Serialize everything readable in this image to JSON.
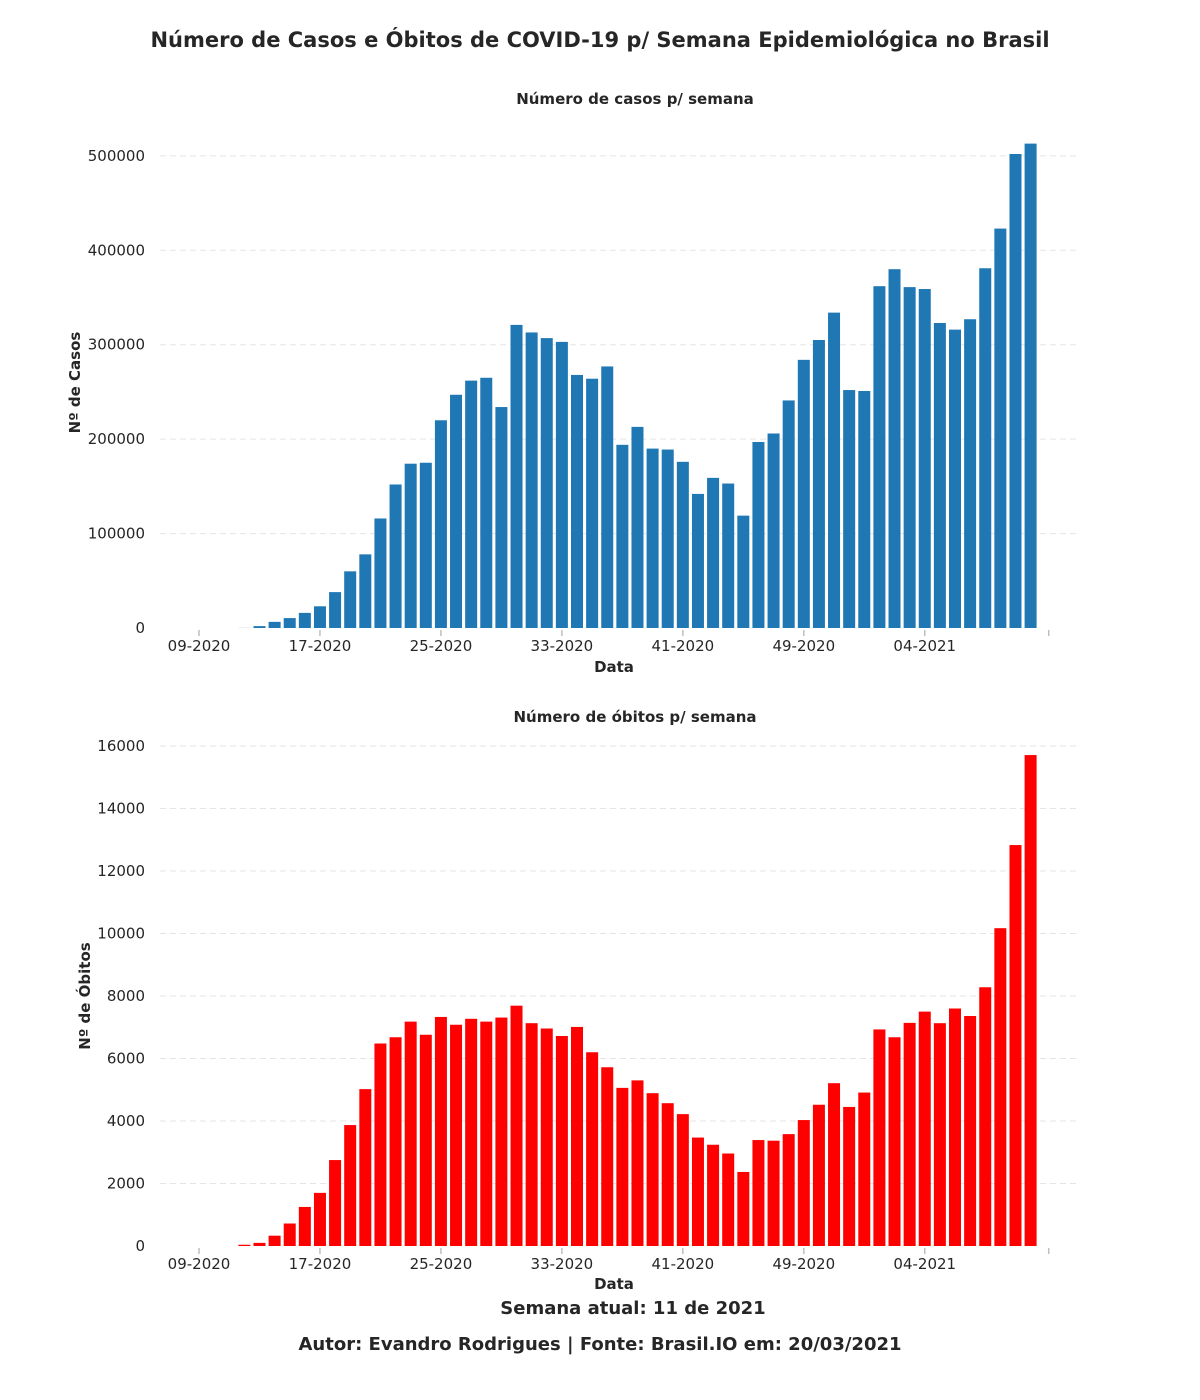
{
  "title": "Número de Casos e Óbitos de COVID-19 p/ Semana Epidemiológica no Brasil",
  "footer": {
    "week_label": "Semana atual: 11 de 2021",
    "author_label": "Autor: Evandro Rodrigues | Fonte: Brasil.IO em: 20/03/2021"
  },
  "chart_data": [
    {
      "type": "bar",
      "title": "Número de casos p/ semana",
      "xlabel": "Data",
      "ylabel": "Nº de Casos",
      "color": "#1f77b4",
      "grid": true,
      "grid_style": "dashed horizontal",
      "ylim": [
        0,
        520000
      ],
      "yticks": [
        0,
        100000,
        200000,
        300000,
        400000,
        500000
      ],
      "xticks": [
        "09-2020",
        "17-2020",
        "25-2020",
        "33-2020",
        "41-2020",
        "49-2020",
        "04-2021"
      ],
      "categories": [
        "09-2020",
        "10-2020",
        "11-2020",
        "12-2020",
        "13-2020",
        "14-2020",
        "15-2020",
        "16-2020",
        "17-2020",
        "18-2020",
        "19-2020",
        "20-2020",
        "21-2020",
        "22-2020",
        "23-2020",
        "24-2020",
        "25-2020",
        "26-2020",
        "27-2020",
        "28-2020",
        "29-2020",
        "30-2020",
        "31-2020",
        "32-2020",
        "33-2020",
        "34-2020",
        "35-2020",
        "36-2020",
        "37-2020",
        "38-2020",
        "39-2020",
        "40-2020",
        "41-2020",
        "42-2020",
        "43-2020",
        "44-2020",
        "45-2020",
        "46-2020",
        "47-2020",
        "48-2020",
        "49-2020",
        "50-2020",
        "51-2020",
        "52-2020",
        "53-2020",
        "01-2021",
        "02-2021",
        "03-2021",
        "04-2021",
        "05-2021",
        "06-2021",
        "07-2021",
        "08-2021",
        "09-2021",
        "10-2021",
        "11-2021"
      ],
      "values": [
        0,
        0,
        0,
        100,
        2000,
        6500,
        10500,
        16000,
        23000,
        38000,
        60000,
        78000,
        116000,
        152000,
        174000,
        175000,
        220000,
        247000,
        262000,
        265000,
        234000,
        321000,
        313000,
        307000,
        303000,
        268000,
        264000,
        277000,
        194000,
        213000,
        190000,
        189000,
        176000,
        142000,
        159000,
        153000,
        119000,
        197000,
        206000,
        241000,
        284000,
        305000,
        334000,
        252000,
        251000,
        362000,
        380000,
        361000,
        359000,
        323000,
        316000,
        327000,
        381000,
        423000,
        502000,
        513000
      ]
    },
    {
      "type": "bar",
      "title": "Número de óbitos p/ semana",
      "xlabel": "Data",
      "ylabel": "Nº de Óbitos",
      "color": "#ff0000",
      "grid": true,
      "grid_style": "dashed horizontal",
      "ylim": [
        0,
        16000
      ],
      "yticks": [
        0,
        2000,
        4000,
        6000,
        8000,
        10000,
        12000,
        14000,
        16000
      ],
      "xticks": [
        "09-2020",
        "17-2020",
        "25-2020",
        "33-2020",
        "41-2020",
        "49-2020",
        "04-2021"
      ],
      "categories": [
        "09-2020",
        "10-2020",
        "11-2020",
        "12-2020",
        "13-2020",
        "14-2020",
        "15-2020",
        "16-2020",
        "17-2020",
        "18-2020",
        "19-2020",
        "20-2020",
        "21-2020",
        "22-2020",
        "23-2020",
        "24-2020",
        "25-2020",
        "26-2020",
        "27-2020",
        "28-2020",
        "29-2020",
        "30-2020",
        "31-2020",
        "32-2020",
        "33-2020",
        "34-2020",
        "35-2020",
        "36-2020",
        "37-2020",
        "38-2020",
        "39-2020",
        "40-2020",
        "41-2020",
        "42-2020",
        "43-2020",
        "44-2020",
        "45-2020",
        "46-2020",
        "47-2020",
        "48-2020",
        "49-2020",
        "50-2020",
        "51-2020",
        "52-2020",
        "53-2020",
        "01-2021",
        "02-2021",
        "03-2021",
        "04-2021",
        "05-2021",
        "06-2021",
        "07-2021",
        "08-2021",
        "09-2021",
        "10-2021",
        "11-2021"
      ],
      "values": [
        0,
        0,
        0,
        40,
        100,
        330,
        720,
        1250,
        1700,
        2750,
        3870,
        5020,
        6480,
        6680,
        7180,
        6760,
        7330,
        7080,
        7270,
        7180,
        7310,
        7690,
        7130,
        6960,
        6720,
        7010,
        6200,
        5720,
        5060,
        5300,
        4890,
        4570,
        4220,
        3470,
        3240,
        2960,
        2370,
        3390,
        3370,
        3580,
        4030,
        4520,
        5210,
        4450,
        4910,
        6930,
        6680,
        7140,
        7500,
        7130,
        7600,
        7360,
        8280,
        10170,
        12830,
        15710
      ]
    }
  ]
}
